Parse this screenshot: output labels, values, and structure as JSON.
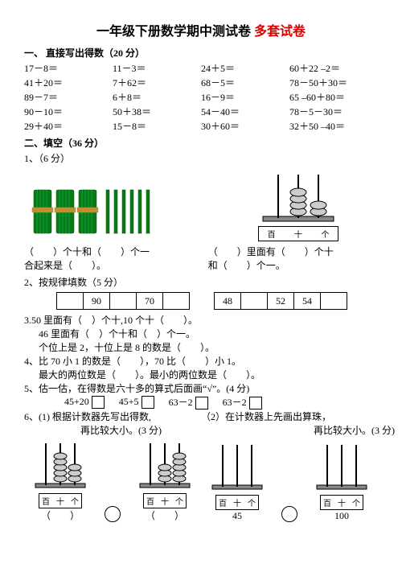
{
  "title_main": "一年级下册数学期中测试卷",
  "title_suffix": "多套试卷",
  "sec1_head": "一、 直接写出得数（20 分）",
  "q1_rows": [
    [
      "17－8＝",
      "11－3＝",
      "24＋5＝",
      "60＋22 –2＝"
    ],
    [
      "41＋20＝",
      "7＋62＝",
      "68－5＝",
      "78－50＋30＝"
    ],
    [
      "89－7＝",
      "6＋8＝",
      "16－9＝",
      "65 –60＋80＝"
    ],
    [
      "90－10＝",
      "50＋38＝",
      "54－40＝",
      "78－5－30＝"
    ],
    [
      "29＋40＝",
      "15－8＝",
      "30＋60＝",
      "32＋50 –40＝"
    ]
  ],
  "sec2_head": "二、填空（36 分）",
  "q2_1_head": "1、（6 分）",
  "q2_1_left_line1": "（　　）个十和（　　）个一",
  "q2_1_left_line2": "合起来是（　　）。",
  "q2_1_right_line1": "（　　）里面有（　　）个十",
  "q2_1_right_line2": "和（　　）个一。",
  "abacus_labels": [
    "百",
    "十",
    "个"
  ],
  "q2_2_head": "2、按规律填数（5 分）",
  "q2_2_table1": [
    "",
    "90",
    "",
    "70",
    ""
  ],
  "q2_2_table2": [
    "48",
    "",
    "52",
    "54",
    ""
  ],
  "q2_3_line1": "3.50 里面有（　）个十,10 个十（　　）。",
  "q2_3_line2": "46 里面有（　）个十和（　）个一。",
  "q2_3_line3": "个位上是 2，十位上是 8 的数是（　　）。",
  "q2_4_line1": "4、比 70 小 1 的数是（　　），70 比（　　）小 1。",
  "q2_4_line2": "最大的两位数是（　　）。最小的两位数是（　　）。",
  "q2_5_head": "5、估一估，在得数是六十多的算式后面画“√”。(4 分)",
  "q2_5_a": "45+20",
  "q2_5_b": "45+5",
  "q2_5_c": "63－2",
  "q2_5_d": "63－2",
  "q2_6_line1": "6、(1) 根据计数器先写出得数,",
  "q2_6_line1b": "（2）在计数器上先画出算珠，",
  "q2_6_line2a": "再比较大小。(3 分)",
  "q2_6_line2b": "再比较大小。(3 分)",
  "q2_6_blank": "（　　）",
  "q2_6_r1": "45",
  "q2_6_r2": "100"
}
